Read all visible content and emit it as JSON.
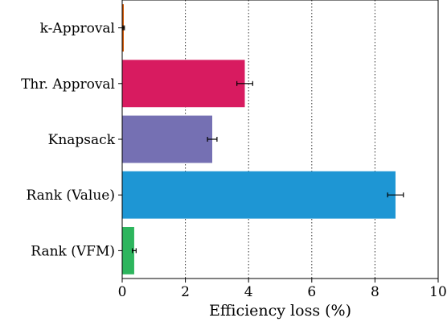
{
  "chart_data": {
    "type": "bar",
    "orientation": "horizontal",
    "categories": [
      "k-Approval",
      "Thr. Approval",
      "Knapsack",
      "Rank (Value)",
      "Rank (VFM)"
    ],
    "values": [
      0.05,
      3.88,
      2.85,
      8.65,
      0.38
    ],
    "errors": [
      0.02,
      0.25,
      0.15,
      0.25,
      0.06
    ],
    "colors": [
      "#d35400",
      "#d81b60",
      "#7570b3",
      "#1e96d4",
      "#2db55d"
    ],
    "xlabel": "Efficiency loss (%)",
    "ylabel": "",
    "title": "",
    "xlim": [
      0,
      10
    ],
    "xticks": [
      "0",
      "2",
      "4",
      "6",
      "8",
      "10"
    ],
    "grid": "vertical-dotted",
    "legend": "none"
  }
}
